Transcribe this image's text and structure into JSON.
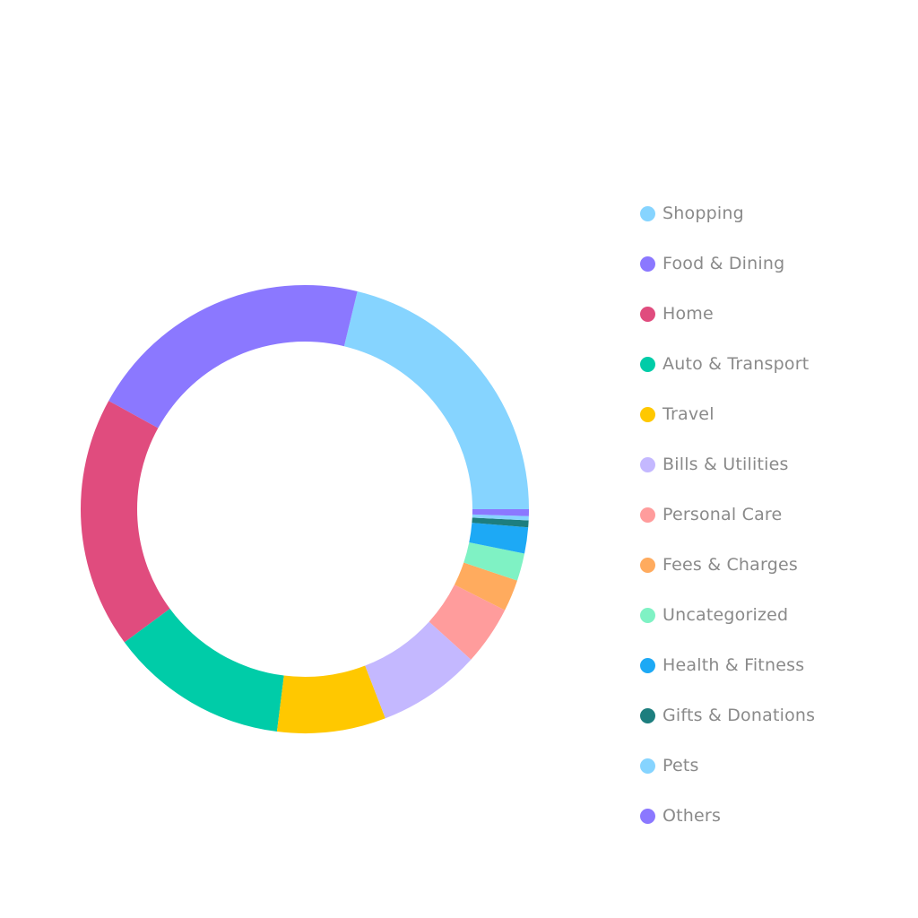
{
  "chart_data": {
    "type": "pie",
    "variant": "donut",
    "categories": [
      "Shopping",
      "Food & Dining",
      "Home",
      "Auto & Transport",
      "Travel",
      "Bills & Utilities",
      "Personal Care",
      "Fees & Charges",
      "Uncategorized",
      "Health & Fitness",
      "Gifts & Donations",
      "Pets",
      "Others"
    ],
    "values": [
      21.4,
      20.9,
      18.3,
      13.0,
      7.9,
      7.5,
      4.3,
      2.3,
      2.0,
      1.9,
      0.5,
      0.3,
      0.5
    ],
    "colors": [
      "#86d4ff",
      "#8b78ff",
      "#e04c7e",
      "#00cca8",
      "#ffc800",
      "#c4b8ff",
      "#ff9c9c",
      "#ffab5e",
      "#7ff2c4",
      "#1da9f5",
      "#1d7e7e",
      "#86d4ff",
      "#8b78ff"
    ],
    "direction": "counterclockwise",
    "start": "east",
    "legend_position": "right",
    "title": "",
    "xlabel": "",
    "ylabel": ""
  }
}
